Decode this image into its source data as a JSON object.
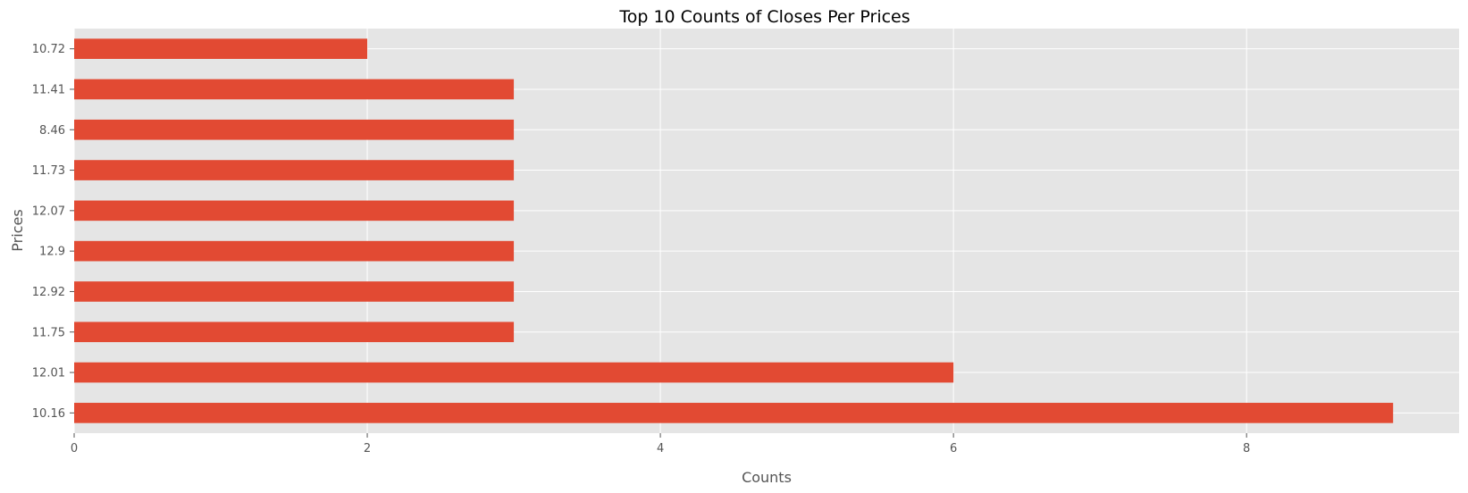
{
  "chart_data": {
    "type": "bar",
    "orientation": "horizontal",
    "title": "Top 10 Counts of Closes Per Prices",
    "xlabel": "Counts",
    "ylabel": "Prices",
    "categories": [
      "10.72",
      "11.41",
      "8.46",
      "11.73",
      "12.07",
      "12.9",
      "12.92",
      "11.75",
      "12.01",
      "10.16"
    ],
    "values": [
      2,
      3,
      3,
      3,
      3,
      3,
      3,
      3,
      6,
      9
    ],
    "xlim": [
      0,
      9.45
    ],
    "xticks": [
      "0",
      "2",
      "4",
      "6",
      "8"
    ],
    "grid": true,
    "legend": "none",
    "colors": {
      "bar": "#E24A33",
      "plot_background": "#E5E5E5",
      "grid": "#FFFFFF",
      "figure_background": "#FFFFFF",
      "text": "#555555"
    }
  }
}
